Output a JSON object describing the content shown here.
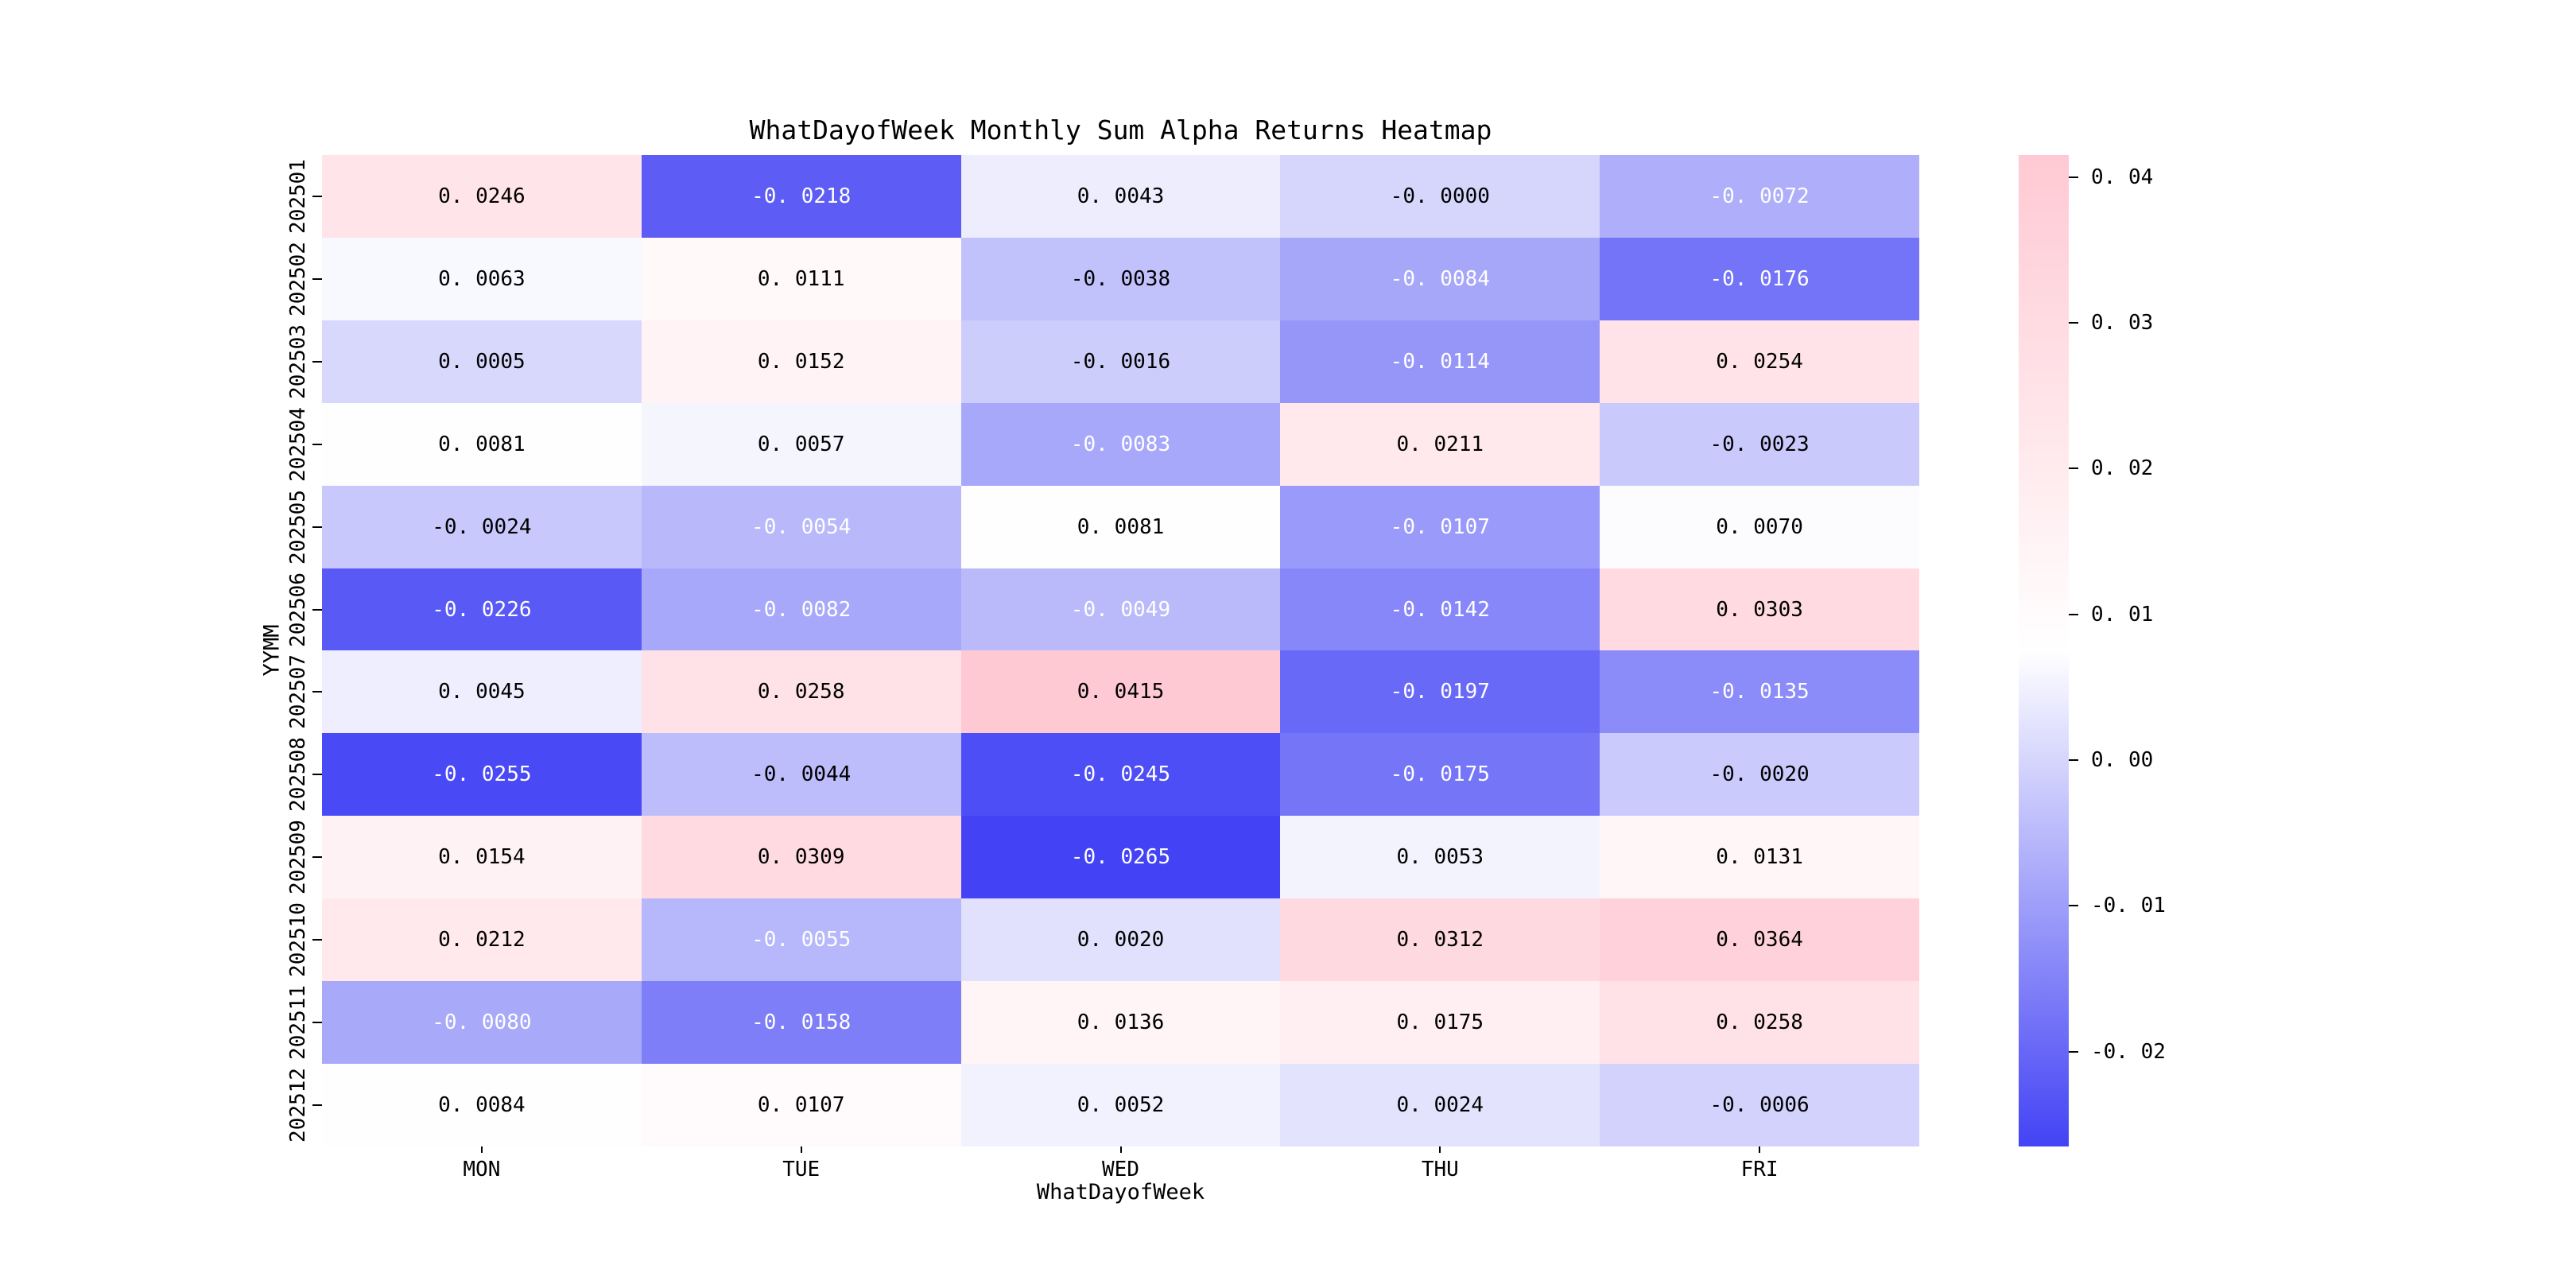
{
  "chart_data": {
    "type": "heatmap",
    "title": "WhatDayofWeek Monthly Sum Alpha Returns Heatmap",
    "xlabel": "WhatDayofWeek",
    "ylabel": "YYMM",
    "columns": [
      "MON",
      "TUE",
      "WED",
      "THU",
      "FRI"
    ],
    "rows": [
      "202501",
      "202502",
      "202503",
      "202504",
      "202505",
      "202506",
      "202507",
      "202508",
      "202509",
      "202510",
      "202511",
      "202512"
    ],
    "values": [
      [
        "0.0246",
        "-0.0218",
        "0.0043",
        "-0.0000",
        "-0.0072"
      ],
      [
        "0.0063",
        "0.0111",
        "-0.0038",
        "-0.0084",
        "-0.0176"
      ],
      [
        "0.0005",
        "0.0152",
        "-0.0016",
        "-0.0114",
        "0.0254"
      ],
      [
        "0.0081",
        "0.0057",
        "-0.0083",
        "0.0211",
        "-0.0023"
      ],
      [
        "-0.0024",
        "-0.0054",
        "0.0081",
        "-0.0107",
        "0.0070"
      ],
      [
        "-0.0226",
        "-0.0082",
        "-0.0049",
        "-0.0142",
        "0.0303"
      ],
      [
        "0.0045",
        "0.0258",
        "0.0415",
        "-0.0197",
        "-0.0135"
      ],
      [
        "-0.0255",
        "-0.0044",
        "-0.0245",
        "-0.0175",
        "-0.0020"
      ],
      [
        "0.0154",
        "0.0309",
        "-0.0265",
        "0.0053",
        "0.0131"
      ],
      [
        "0.0212",
        "-0.0055",
        "0.0020",
        "0.0312",
        "0.0364"
      ],
      [
        "-0.0080",
        "-0.0158",
        "0.0136",
        "0.0175",
        "0.0258"
      ],
      [
        "0.0084",
        "0.0107",
        "0.0052",
        "0.0024",
        "-0.0006"
      ]
    ],
    "color_scale": {
      "vmin": -0.0265,
      "vmax": 0.0415,
      "negative_color": "#4343F5",
      "center_color": "#FFFFFF",
      "positive_color": "#FFC9D3",
      "annot_color_light_cells": "#000000",
      "annot_color_dark_cells": "#FFFFFF"
    },
    "colorbar_ticks": [
      "0.04",
      "0.03",
      "0.02",
      "0.01",
      "0.00",
      "-0.01",
      "-0.02"
    ],
    "legend_position": "right",
    "grid": false
  }
}
